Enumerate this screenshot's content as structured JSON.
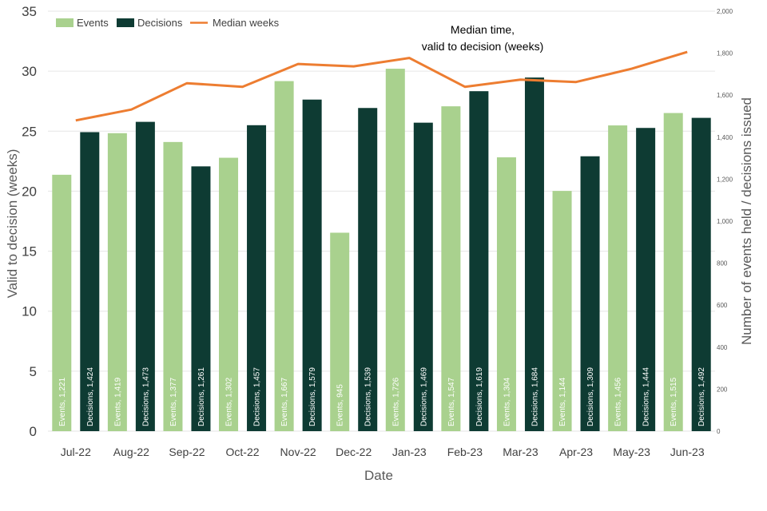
{
  "chart_data": {
    "type": "bar",
    "categories": [
      "Jul-22",
      "Aug-22",
      "Sep-22",
      "Oct-22",
      "Nov-22",
      "Dec-22",
      "Jan-23",
      "Feb-23",
      "Mar-23",
      "Apr-23",
      "May-23",
      "Jun-23"
    ],
    "series": [
      {
        "name": "Events",
        "type": "bar",
        "axis": "right",
        "color": "#a9d18e",
        "values": [
          1221,
          1419,
          1377,
          1302,
          1667,
          945,
          1726,
          1547,
          1304,
          1144,
          1456,
          1515
        ],
        "labels": [
          "Events, 1,221",
          "Events, 1,419",
          "Events, 1,377",
          "Events, 1,302",
          "Events, 1,667",
          "Events, 945",
          "Events, 1,726",
          "Events, 1,547",
          "Events, 1,304",
          "Events, 1,144",
          "Events, 1,456",
          "Events, 1,515"
        ]
      },
      {
        "name": "Decisions",
        "type": "bar",
        "axis": "right",
        "color": "#0e3b33",
        "values": [
          1424,
          1473,
          1261,
          1457,
          1579,
          1539,
          1469,
          1619,
          1684,
          1309,
          1444,
          1492
        ],
        "labels": [
          "Decisions, 1,424",
          "Decisions, 1,473",
          "Decisions, 1,261",
          "Decisions, 1,457",
          "Decisions, 1,579",
          "Decisions, 1,539",
          "Decisions, 1,469",
          "Decisions, 1,619",
          "Decisions, 1,684",
          "Decisions, 1,309",
          "Decisions, 1,444",
          "Decisions, 1,492"
        ]
      },
      {
        "name": "Median weeks",
        "type": "line",
        "axis": "left",
        "color": "#ed7d31",
        "values": [
          25.9,
          26.8,
          29.0,
          28.7,
          30.6,
          30.4,
          31.1,
          28.7,
          29.3,
          29.1,
          30.2,
          31.6
        ]
      }
    ],
    "xlabel": "Date",
    "ylabel": "Valid to decision (weeks)",
    "y2label": "Number of events held / decisions issued",
    "ylim": [
      0,
      35
    ],
    "yticks": [
      "0",
      "5",
      "10",
      "15",
      "20",
      "25",
      "30",
      "35"
    ],
    "y2lim": [
      0,
      2000
    ],
    "y2ticks": [
      "0",
      "200",
      "400",
      "600",
      "800",
      "1,000",
      "1,200",
      "1,400",
      "1,600",
      "1,800",
      "2,000"
    ],
    "annotation": [
      "Median time,",
      "valid to decision (weeks)"
    ],
    "legend_position": "top-left",
    "grid": true
  }
}
